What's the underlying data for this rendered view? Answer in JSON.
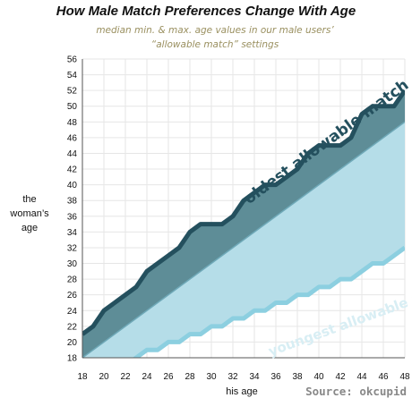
{
  "chart_data": {
    "type": "area",
    "title": "How Male Match Preferences Change With Age",
    "subtitle_lines": [
      "median min. & max. age values in our male users’",
      "“allowable match” settings"
    ],
    "xlabel": "his age",
    "ylabel_lines": [
      "the",
      "woman’s",
      "age"
    ],
    "source": "Source: okcupid",
    "xlim": [
      18,
      48
    ],
    "ylim": [
      18,
      56
    ],
    "x_ticks": [
      18,
      20,
      22,
      24,
      26,
      28,
      30,
      32,
      34,
      36,
      38,
      40,
      42,
      44,
      46,
      48
    ],
    "y_ticks": [
      18,
      20,
      22,
      24,
      26,
      28,
      30,
      32,
      34,
      36,
      38,
      40,
      42,
      44,
      46,
      48,
      50,
      52,
      54,
      56
    ],
    "grid": true,
    "x": [
      18,
      19,
      20,
      21,
      22,
      23,
      24,
      25,
      26,
      27,
      28,
      29,
      30,
      31,
      32,
      33,
      34,
      35,
      36,
      37,
      38,
      39,
      40,
      41,
      42,
      43,
      44,
      45,
      46,
      47,
      48
    ],
    "series": [
      {
        "name": "oldest allowable match",
        "values": [
          21,
          22,
          24,
          25,
          26,
          27,
          29,
          30,
          31,
          32,
          34,
          35,
          35,
          35,
          36,
          38,
          39,
          40,
          40,
          41,
          42,
          44,
          45,
          45,
          45,
          46,
          49,
          50,
          50,
          50,
          52
        ],
        "color": "#24505e"
      },
      {
        "name": "youngest allowable match",
        "values": [
          17,
          17,
          17,
          17,
          17,
          18,
          19,
          19,
          20,
          20,
          21,
          21,
          22,
          22,
          23,
          23,
          24,
          24,
          25,
          25,
          26,
          26,
          27,
          27,
          28,
          28,
          29,
          30,
          30,
          31,
          32
        ],
        "color": "#8ccfe0"
      }
    ],
    "reference_line": {
      "y_equals_x": true,
      "color": "#6fa9b8"
    },
    "fill_above_reference_color": "#5e8d97",
    "fill_below_reference_color": "#b5dde8"
  }
}
